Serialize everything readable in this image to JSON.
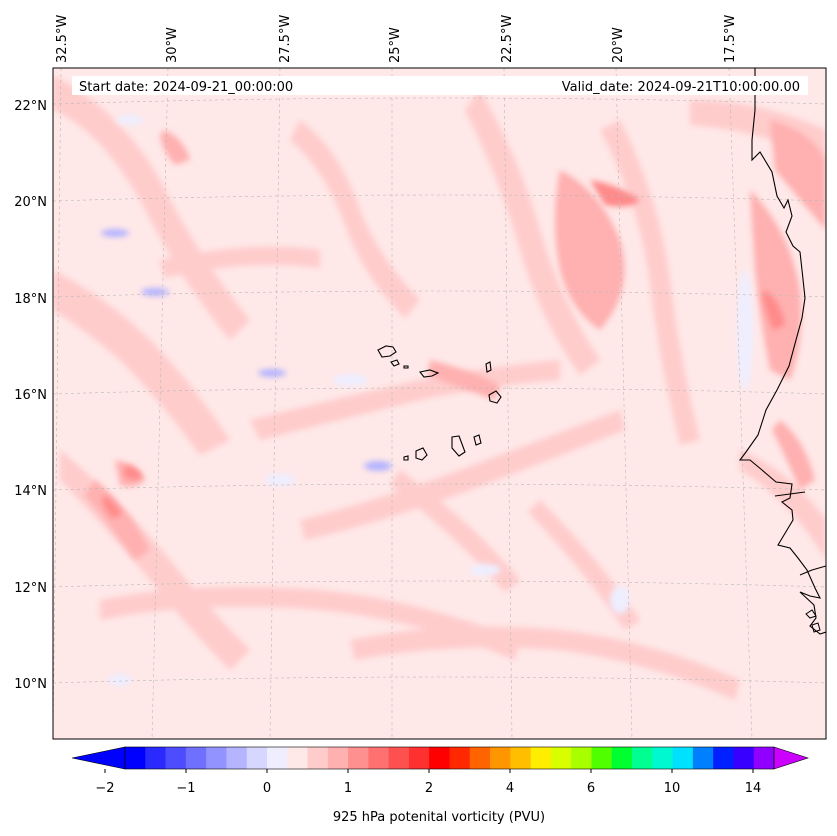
{
  "header": {
    "start_date": "Start date: 2024-09-21_00:00:00",
    "valid_date": "Valid_date: 2024-09-21T10:00:00.00"
  },
  "lon_labels": [
    "32.5°W",
    "30°W",
    "27.5°W",
    "25°W",
    "22.5°W",
    "20°W",
    "17.5°W"
  ],
  "lat_labels": [
    "22°N",
    "20°N",
    "18°N",
    "16°N",
    "14°N",
    "12°N",
    "10°N"
  ],
  "colorbar": {
    "label": "925 hPa potenital vorticity (PVU)",
    "tick_labels": [
      "−2",
      "−1",
      "0",
      "1",
      "2",
      "4",
      "6",
      "10",
      "14"
    ],
    "colors": [
      "#0000ff",
      "#2a2aff",
      "#4d4dff",
      "#7070ff",
      "#9393ff",
      "#b4b4ff",
      "#d6d6ff",
      "#eeeeff",
      "#ffe8e8",
      "#ffcccc",
      "#ffb0b0",
      "#ff9090",
      "#ff7070",
      "#ff5050",
      "#ff3030",
      "#ff0000",
      "#ff2800",
      "#ff6400",
      "#ff9600",
      "#ffbe00",
      "#ffee00",
      "#d8ff00",
      "#a8ff00",
      "#50ff00",
      "#00ff30",
      "#00ff90",
      "#00f8d0",
      "#00e0ff",
      "#0080ff",
      "#0020ff",
      "#3800ff",
      "#9000ff"
    ],
    "under_color": "#0000ff",
    "over_color": "#cc00ff"
  },
  "map": {
    "background_color": "#ffe8e8"
  }
}
